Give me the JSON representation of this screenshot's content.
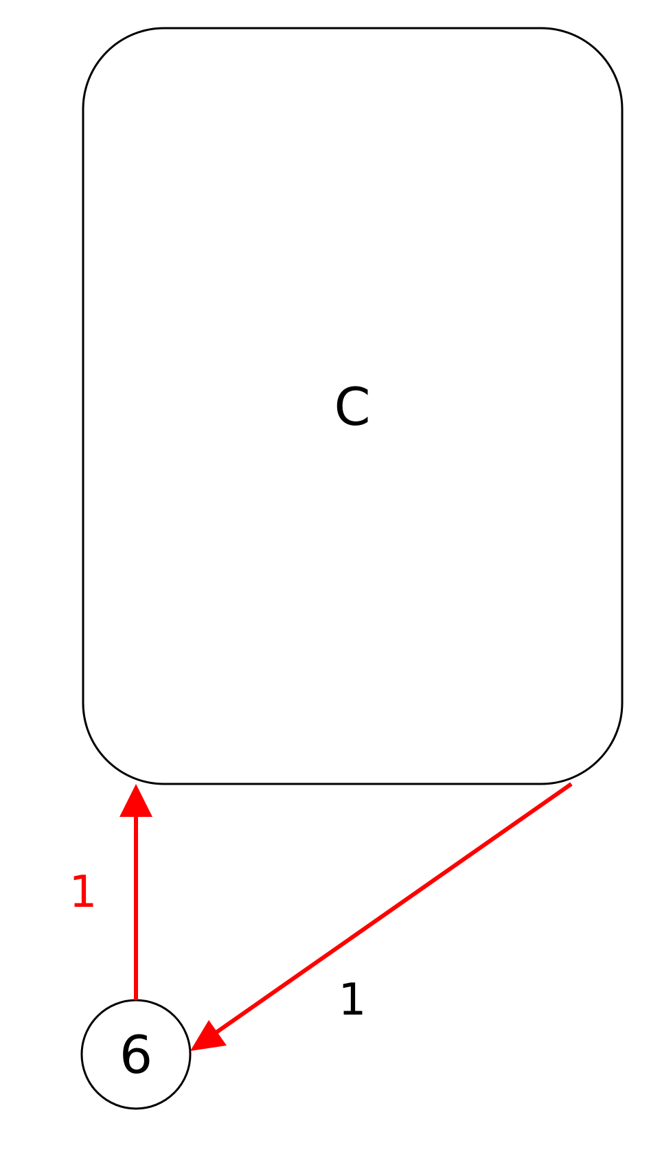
{
  "nodes": {
    "composite": {
      "label": "C"
    },
    "state_6": {
      "label": "6"
    }
  },
  "edges": {
    "six_to_c": {
      "label": "1",
      "color": "#ff0000",
      "label_color": "#ff0000"
    },
    "c_to_six": {
      "label": "1",
      "color": "#ff0000",
      "label_color": "#000000"
    }
  }
}
